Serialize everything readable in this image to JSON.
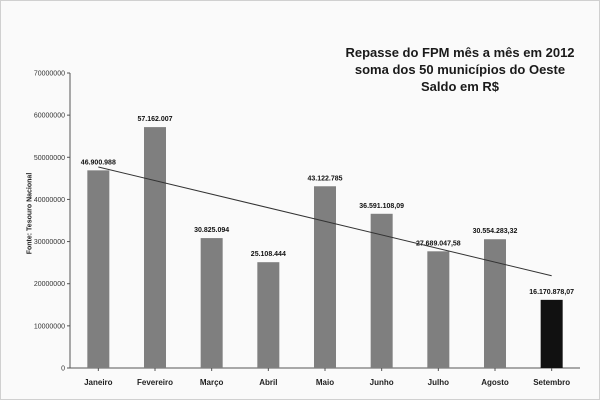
{
  "chart_data": {
    "type": "bar",
    "title_lines": [
      "Repasse do FPM mês a mês em 2012",
      "soma dos 50 municípios do Oeste",
      "Saldo em R$"
    ],
    "ylabel": "Fonte: Tesouro Nacional",
    "xlabel": "",
    "ylim": [
      0,
      70000000
    ],
    "yticks": [
      "0",
      "10000000",
      "20000000",
      "30000000",
      "40000000",
      "50000000",
      "60000000",
      "70000000"
    ],
    "categories": [
      "Janeiro",
      "Fevereiro",
      "Março",
      "Abril",
      "Maio",
      "Junho",
      "Julho",
      "Agosto",
      "Setembro"
    ],
    "values": [
      46900988,
      57162007,
      30825094,
      25108444,
      43122785,
      36591108.09,
      27689047.58,
      30554283.32,
      16170878.07
    ],
    "data_labels": [
      "46.900.988",
      "57.162.007",
      "30.825.094",
      "25.108.444",
      "43.122.785",
      "36.591.108,09",
      "27.689.047,58",
      "30.554.283,32",
      "16.170.878,07"
    ],
    "bar_colors": [
      "#7f7f7f",
      "#7f7f7f",
      "#7f7f7f",
      "#7f7f7f",
      "#7f7f7f",
      "#7f7f7f",
      "#7f7f7f",
      "#7f7f7f",
      "#111111"
    ],
    "trendline": {
      "from": 47700000,
      "to": 21900000
    },
    "grid": false,
    "legend": "none"
  }
}
